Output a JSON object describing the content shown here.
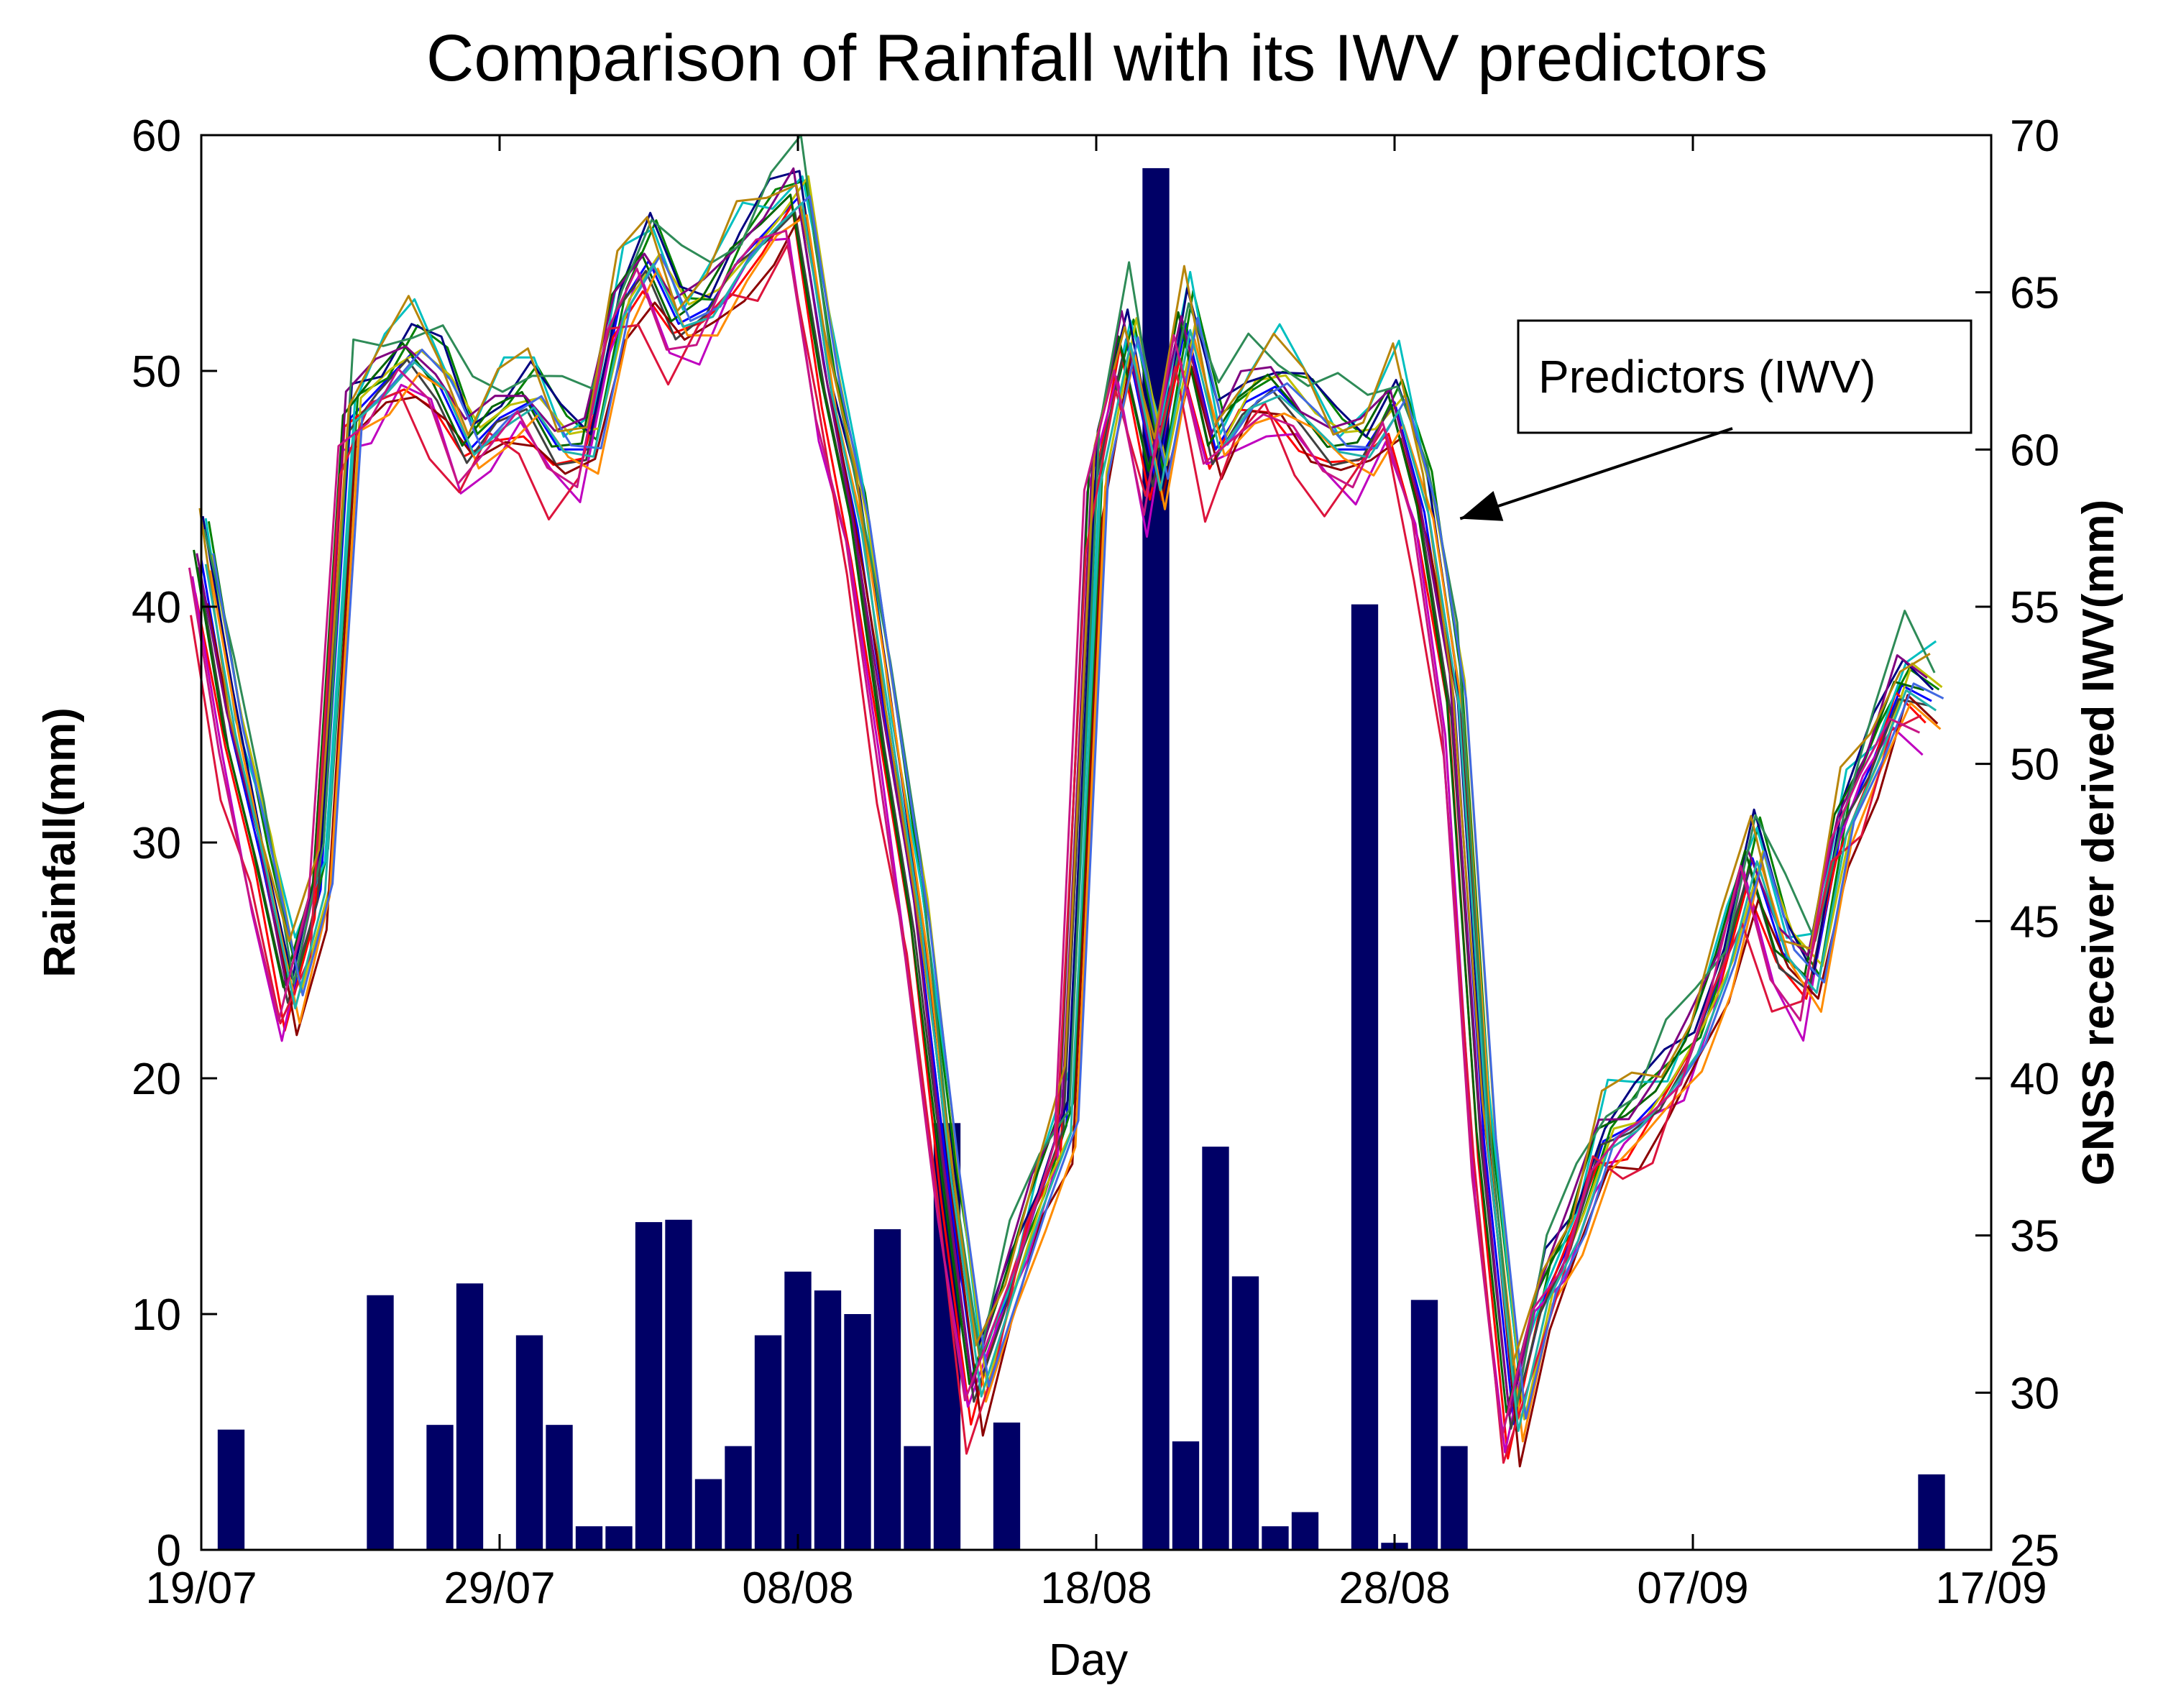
{
  "chart_data": {
    "type": "bar+line",
    "title": "Comparison of Rainfall with its IWV predictors",
    "xlabel": "Day",
    "ylabel_left": "Rainfall(mm)",
    "ylabel_right": "GNSS receiver derived IWV(mm)",
    "x_tick_labels": [
      "19/07",
      "29/07",
      "08/08",
      "18/08",
      "28/08",
      "07/09",
      "17/09"
    ],
    "x_tick_days": [
      0,
      10,
      20,
      30,
      40,
      50,
      60
    ],
    "xlim": [
      0,
      60
    ],
    "ylim_left": [
      0,
      60
    ],
    "ylim_right": [
      25,
      70
    ],
    "y_ticks_left": [
      0,
      10,
      20,
      30,
      40,
      50,
      60
    ],
    "y_ticks_right": [
      25,
      30,
      35,
      40,
      45,
      50,
      55,
      60,
      65,
      70
    ],
    "annotation": {
      "text": "Predictors (IWV)",
      "points_to_day": 42.2,
      "points_to_iwv": 57.8
    },
    "rainfall_bars": {
      "color": "#000066",
      "days": [
        1,
        6,
        8,
        9,
        11,
        12,
        13,
        14,
        15,
        16,
        17,
        18,
        19,
        20,
        21,
        22,
        23,
        24,
        25,
        27,
        32,
        33,
        34,
        35,
        36,
        37,
        39,
        40,
        41,
        42,
        43,
        44,
        45,
        46,
        58
      ],
      "values": [
        5.1,
        10.8,
        5.3,
        11.3,
        9.1,
        5.3,
        1.0,
        1.0,
        13.9,
        14.0,
        3.0,
        4.4,
        9.1,
        11.8,
        11.0,
        10.0,
        13.6,
        4.4,
        18.1,
        5.4,
        58.6,
        4.6,
        17.1,
        11.6,
        1.0,
        1.6,
        40.1,
        0.3,
        10.6,
        4.4,
        0,
        0,
        0,
        0,
        3.2
      ]
    },
    "iwv_mean_series": {
      "days": [
        0,
        1,
        2,
        3,
        4,
        5,
        6,
        7,
        8,
        9,
        10,
        11,
        12,
        13,
        14,
        15,
        16,
        17,
        18,
        19,
        20,
        21,
        22,
        23,
        24,
        25,
        26,
        27,
        28,
        29,
        30,
        31,
        32,
        33,
        34,
        35,
        36,
        37,
        38,
        39,
        40,
        41,
        42,
        43,
        44,
        45,
        46,
        47,
        48,
        49,
        50,
        51,
        52,
        53,
        54,
        55,
        56,
        57,
        58
      ],
      "values": [
        56.5,
        51.0,
        47.0,
        42.5,
        46.0,
        61.0,
        62.0,
        63.0,
        62.0,
        60.0,
        61.0,
        61.5,
        60.0,
        60.0,
        64.5,
        66.0,
        64.0,
        64.5,
        66.0,
        67.0,
        68.0,
        62.0,
        57.5,
        51.0,
        45.0,
        37.0,
        30.0,
        33.0,
        36.0,
        38.5,
        59.0,
        63.5,
        59.0,
        64.0,
        60.0,
        61.5,
        62.0,
        61.0,
        60.0,
        60.0,
        61.5,
        58.0,
        52.0,
        38.0,
        29.0,
        33.0,
        35.0,
        38.0,
        38.5,
        39.5,
        41.0,
        43.5,
        47.0,
        44.0,
        43.0,
        48.0,
        50.0,
        52.5,
        52.0
      ]
    },
    "iwv_predictor_colors": [
      "#0000ff",
      "#008000",
      "#ff0000",
      "#00bfbf",
      "#bf00bf",
      "#bfbf00",
      "#404040",
      "#000080",
      "#8b0000",
      "#006400",
      "#ff8c00",
      "#800080",
      "#2e8b57",
      "#dc143c",
      "#4169e1",
      "#b8860b",
      "#20b2aa",
      "#c71585"
    ],
    "iwv_predictor_offsets": [
      0.0,
      1.3,
      -1.1,
      2.0,
      -1.8,
      0.7,
      -0.5,
      1.6,
      -1.4,
      0.4,
      -0.9,
      1.0,
      2.5,
      -2.3,
      0.2,
      1.9,
      -0.3,
      -1.2
    ],
    "iwv_predictor_day_shifts": [
      0.0,
      0.25,
      -0.2,
      0.15,
      -0.3,
      0.35,
      -0.1,
      0.05,
      0.2,
      -0.25,
      0.3,
      -0.15,
      0.1,
      -0.35,
      0.4,
      -0.05,
      0.15,
      -0.4
    ]
  }
}
